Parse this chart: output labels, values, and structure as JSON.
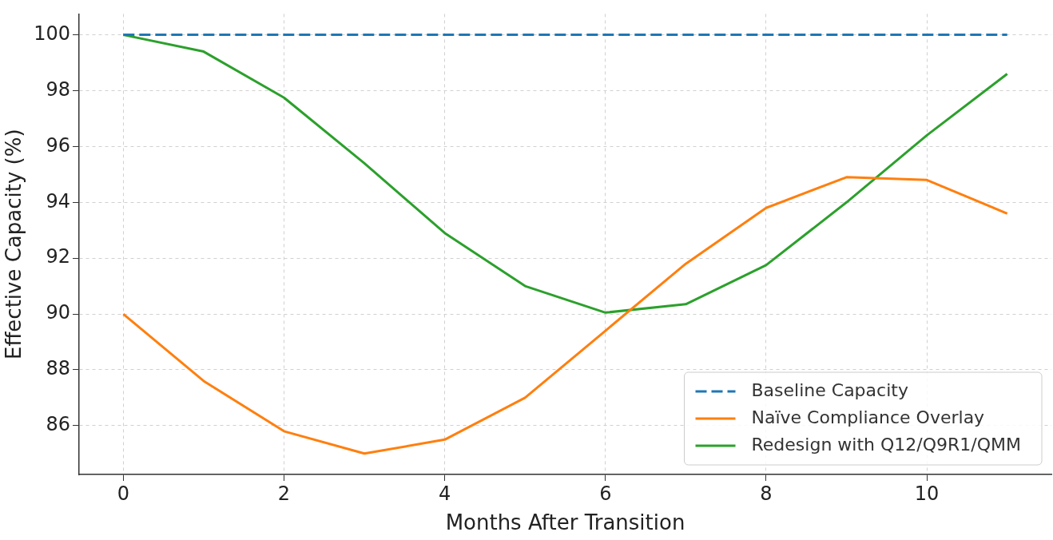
{
  "chart_data": {
    "type": "line",
    "xlabel": "Months After Transition",
    "ylabel": "Effective Capacity (%)",
    "x": [
      0,
      1,
      2,
      3,
      4,
      5,
      6,
      7,
      8,
      9,
      10,
      11
    ],
    "series": [
      {
        "name": "Baseline Capacity",
        "color": "#1f77b4",
        "line_style": "dashed",
        "values": [
          100,
          100,
          100,
          100,
          100,
          100,
          100,
          100,
          100,
          100,
          100,
          100
        ]
      },
      {
        "name": "Naïve Compliance Overlay",
        "color": "#ff7f0e",
        "values": [
          90,
          87.6,
          85.8,
          85.0,
          85.5,
          87.0,
          89.4,
          91.8,
          93.8,
          94.9,
          94.8,
          93.6
        ]
      },
      {
        "name": "Redesign with Q12/Q9R1/QMM",
        "color": "#2ca02c",
        "values": [
          100,
          99.4,
          97.75,
          95.4,
          92.9,
          91.0,
          90.05,
          90.35,
          91.75,
          94.0,
          96.4,
          98.6
        ]
      }
    ],
    "xlim": [
      -0.55,
      11.55
    ],
    "xticks": [
      0,
      2,
      4,
      6,
      8,
      10
    ],
    "ylim": [
      84.25,
      100.75
    ],
    "yticks": [
      86,
      88,
      90,
      92,
      94,
      96,
      98,
      100
    ],
    "grid": true,
    "legend": "bottom right"
  }
}
